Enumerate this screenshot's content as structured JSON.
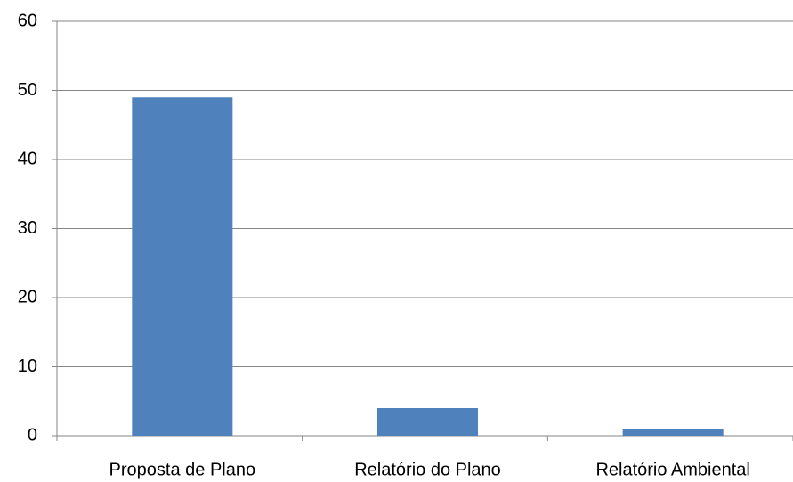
{
  "chart_data": {
    "type": "bar",
    "categories": [
      "Proposta de Plano",
      "Relatório do Plano",
      "Relatório Ambiental"
    ],
    "values": [
      49,
      4,
      1
    ],
    "color": "#4f81bd",
    "ylim": [
      0,
      60
    ],
    "yticks": [
      0,
      10,
      20,
      30,
      40,
      50,
      60
    ],
    "grid": true
  }
}
